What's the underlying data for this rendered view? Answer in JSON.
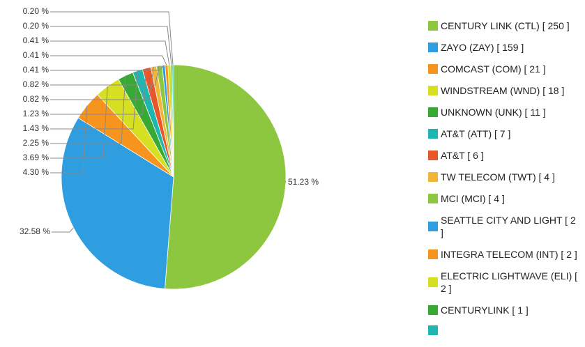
{
  "chart_data": {
    "type": "pie",
    "categories": [
      "CENTURY LINK (CTL) [ 250 ]",
      "ZAYO (ZAY) [ 159 ]",
      "COMCAST (COM) [ 21 ]",
      "WINDSTREAM (WND) [ 18 ]",
      "UNKNOWN (UNK) [ 11 ]",
      "AT&T (ATT) [ 7 ]",
      "AT&T [ 6 ]",
      "TW TELECOM (TWT) [ 4 ]",
      "MCI (MCI) [ 4 ]",
      "SEATTLE CITY AND LIGHT [ 2 ]",
      "INTEGRA TELECOM (INT) [ 2 ]",
      "ELECTRIC LIGHTWAVE (ELI) [ 2 ]",
      "CENTURYLINK [ 1 ]",
      null
    ],
    "values": [
      51.23,
      32.58,
      4.3,
      3.69,
      2.25,
      1.43,
      1.23,
      0.82,
      0.82,
      0.41,
      0.41,
      0.41,
      0.2,
      0.2
    ],
    "value_labels": [
      "51.23 %",
      "32.58 %",
      "4.30 %",
      "3.69 %",
      "2.25 %",
      "1.43 %",
      "1.23 %",
      "0.82 %",
      "0.82 %",
      "0.41 %",
      "0.41 %",
      "0.41 %",
      "0.20 %",
      "0.20 %"
    ],
    "colors": [
      "#8dc63f",
      "#2e9ee0",
      "#f7941d",
      "#d7df23",
      "#39a935",
      "#1fb5b0",
      "#e8572a",
      "#f0b63a",
      "#8dc63f",
      "#2e9ee0",
      "#f7941d",
      "#d7df23",
      "#39a935",
      "#1fb5b0"
    ],
    "legend": "right"
  }
}
